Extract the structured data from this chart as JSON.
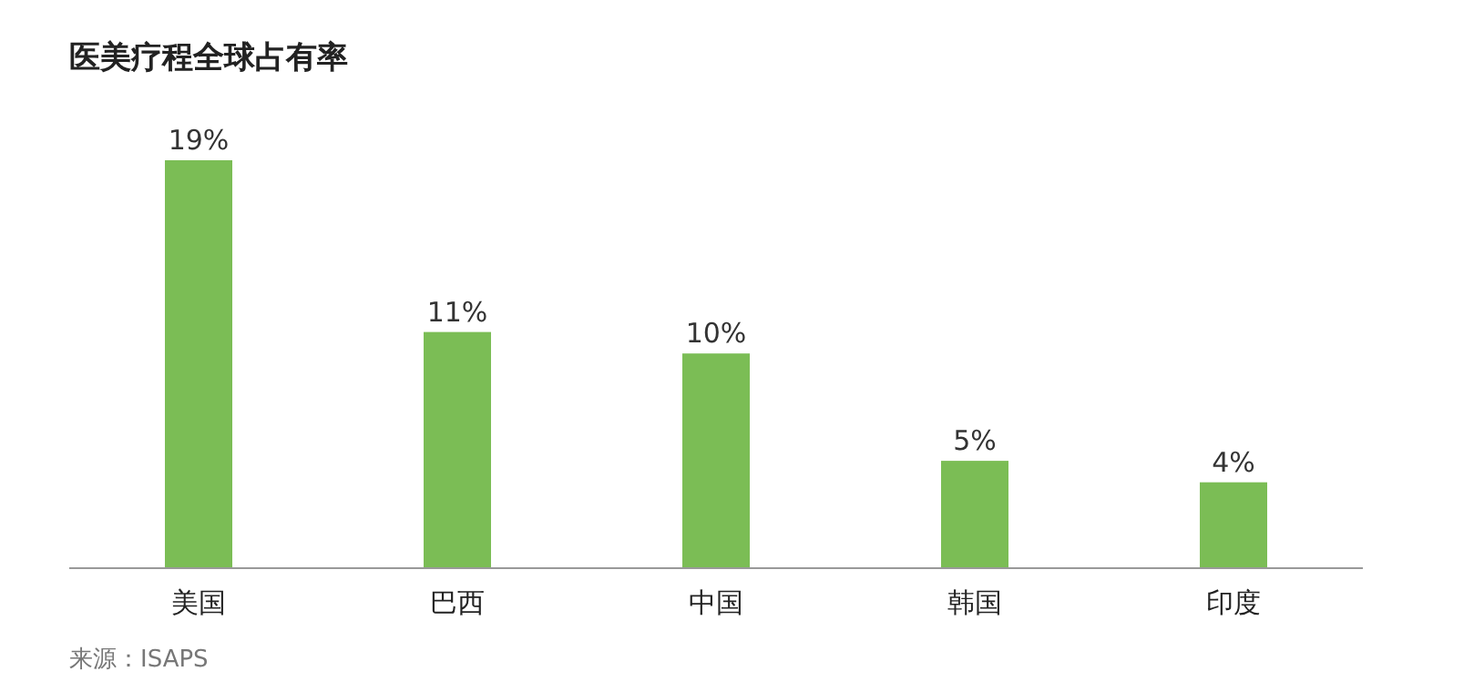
{
  "chart_data": {
    "type": "bar",
    "title": "医美疗程全球占有率",
    "categories": [
      "美国",
      "巴西",
      "中国",
      "韩国",
      "印度"
    ],
    "values": [
      19,
      11,
      10,
      5,
      4
    ],
    "value_labels": [
      "19%",
      "11%",
      "10%",
      "5%",
      "4%"
    ],
    "color": "#7bbd55",
    "annotations": [
      "来源：ISAPS"
    ]
  }
}
